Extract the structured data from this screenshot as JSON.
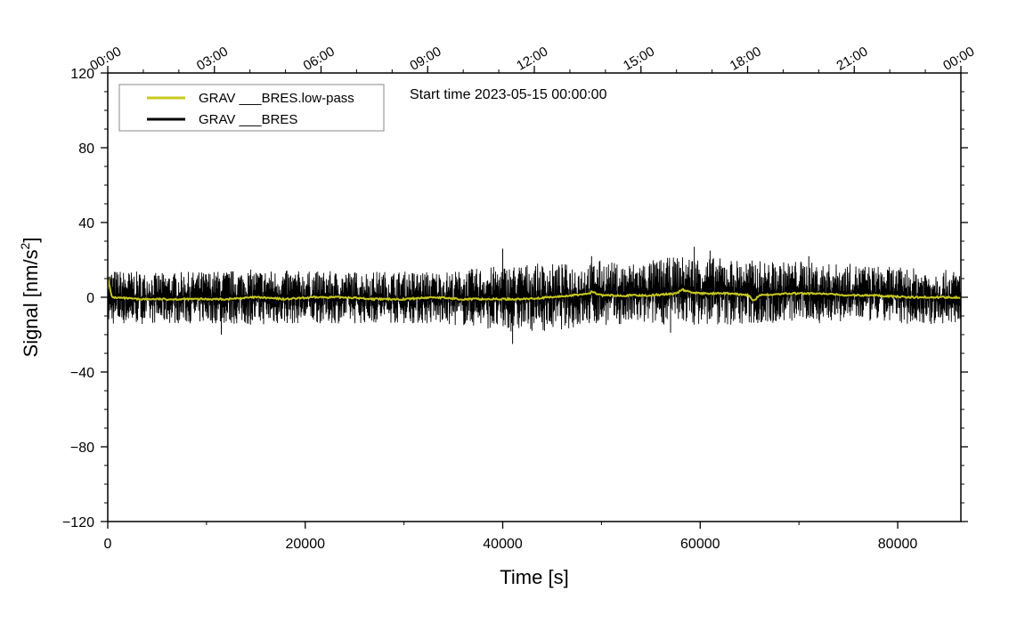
{
  "chart_data": {
    "type": "line",
    "title": "",
    "annotation": "Start time 2023-05-15 00:00:00",
    "xlabel": "Time [s]",
    "ylabel": "Signal [nm/s",
    "ylabel_superscript": "2",
    "ylabel_suffix": "]",
    "xlim": [
      0,
      86400
    ],
    "ylim": [
      -120,
      120
    ],
    "grid": false,
    "legend_position": "top-left",
    "x_ticks": [
      0,
      20000,
      40000,
      60000,
      80000
    ],
    "x_tick_labels": [
      "0",
      "20000",
      "40000",
      "60000",
      "80000"
    ],
    "y_ticks": [
      120,
      80,
      40,
      0,
      -40,
      -80,
      -120
    ],
    "y_tick_labels": [
      "120",
      "80",
      "40",
      "0",
      "−40",
      "−80",
      "−120"
    ],
    "top_axis_ticks": [
      0,
      10800,
      21600,
      32400,
      43200,
      54000,
      64800,
      75600,
      86400
    ],
    "top_axis_labels": [
      "00:00",
      "03:00",
      "06:00",
      "09:00",
      "12:00",
      "15:00",
      "18:00",
      "21:00",
      "00:00"
    ],
    "series": [
      {
        "name": "GRAV ___BRES.low-pass",
        "color": "#c8c81e",
        "x": [
          0,
          400,
          3000,
          6000,
          9000,
          12000,
          15000,
          18000,
          21000,
          24000,
          27000,
          30000,
          33000,
          36000,
          39000,
          42000,
          45000,
          47000,
          48800,
          49000,
          50000,
          52000,
          55000,
          57500,
          58200,
          58800,
          60000,
          63000,
          65000,
          65400,
          66000,
          69000,
          72000,
          75000,
          78000,
          81000,
          84000,
          86400
        ],
        "values": [
          11,
          0,
          -1,
          -1,
          -1,
          -1,
          0,
          -1,
          0,
          0,
          -1,
          -1,
          0,
          -1,
          -1,
          -1,
          0,
          1,
          2,
          3,
          1,
          1,
          1,
          2,
          4,
          3,
          2,
          2,
          1,
          -2,
          1,
          2,
          2,
          1,
          1,
          0,
          0,
          0
        ]
      },
      {
        "name": "GRAV ___BRES",
        "color": "#000000",
        "envelope": {
          "x": [
            0,
            5000,
            10000,
            15000,
            20000,
            25000,
            30000,
            35000,
            38000,
            40000,
            42000,
            45000,
            48000,
            50000,
            52000,
            55000,
            58000,
            60000,
            62000,
            65000,
            68000,
            70000,
            72000,
            75000,
            80000,
            84000,
            86400
          ],
          "upper": [
            15,
            13,
            14,
            15,
            14,
            14,
            14,
            14,
            16,
            17,
            18,
            18,
            18,
            20,
            18,
            20,
            22,
            22,
            21,
            20,
            19,
            20,
            18,
            18,
            16,
            15,
            14
          ],
          "lower": [
            -15,
            -14,
            -14,
            -15,
            -14,
            -14,
            -14,
            -15,
            -16,
            -19,
            -18,
            -18,
            -16,
            -15,
            -15,
            -15,
            -14,
            -15,
            -15,
            -15,
            -14,
            -13,
            -14,
            -13,
            -14,
            -15,
            -14
          ]
        },
        "spikes": [
          {
            "x": 40000,
            "value": 26
          },
          {
            "x": 41000,
            "value": -25
          },
          {
            "x": 59400,
            "value": 27
          },
          {
            "x": 61000,
            "value": 25
          },
          {
            "x": 71000,
            "value": 22
          },
          {
            "x": 49000,
            "value": 22
          },
          {
            "x": 11500,
            "value": -20
          },
          {
            "x": 57000,
            "value": -19
          }
        ]
      }
    ]
  }
}
